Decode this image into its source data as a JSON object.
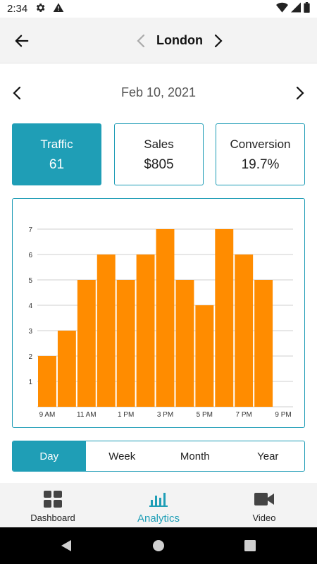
{
  "status_bar": {
    "time": "2:34"
  },
  "header": {
    "city": "London"
  },
  "date_nav": {
    "date": "Feb 10, 2021"
  },
  "metrics": [
    {
      "label": "Traffic",
      "value": "61",
      "active": true
    },
    {
      "label": "Sales",
      "value": "$805",
      "active": false
    },
    {
      "label": "Conversion",
      "value": "19.7%",
      "active": false
    }
  ],
  "chart_data": {
    "type": "bar",
    "categories": [
      "9 AM",
      "10 AM",
      "11 AM",
      "12 PM",
      "1 PM",
      "2 PM",
      "3 PM",
      "4 PM",
      "5 PM",
      "6 PM",
      "7 PM",
      "8 PM"
    ],
    "values": [
      2,
      3,
      5,
      6,
      5,
      6,
      7,
      5,
      4,
      7,
      6,
      5
    ],
    "x_tick_labels": [
      "9 AM",
      "11 AM",
      "1 PM",
      "3 PM",
      "5 PM",
      "7 PM",
      "9 PM"
    ],
    "y_ticks": [
      1,
      2,
      3,
      4,
      5,
      6,
      7
    ],
    "ylim": [
      0,
      7
    ],
    "grid": true,
    "bar_color": "#ff8c00",
    "title": "",
    "xlabel": "",
    "ylabel": ""
  },
  "period_tabs": [
    {
      "label": "Day",
      "active": true
    },
    {
      "label": "Week",
      "active": false
    },
    {
      "label": "Month",
      "active": false
    },
    {
      "label": "Year",
      "active": false
    }
  ],
  "bottom_nav": [
    {
      "label": "Dashboard",
      "icon": "dashboard-icon",
      "active": false
    },
    {
      "label": "Analytics",
      "icon": "bar-chart-icon",
      "active": true
    },
    {
      "label": "Video",
      "icon": "video-camera-icon",
      "active": false
    }
  ],
  "colors": {
    "accent": "#1f9eb6",
    "bar": "#ff8c00",
    "header_bg": "#f3f3f3"
  }
}
